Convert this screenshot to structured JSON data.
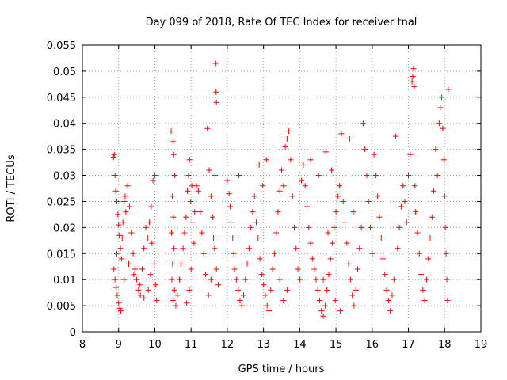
{
  "chart_data": {
    "type": "scatter",
    "title": "Day 099 of 2018, Rate Of TEC Index for receiver tnal",
    "xlabel": "GPS time / hours",
    "ylabel": "ROTI / TECUs",
    "xlim": [
      8,
      19
    ],
    "ylim": [
      0,
      0.055
    ],
    "xticks": [
      "8",
      "9",
      "10",
      "11",
      "12",
      "13",
      "14",
      "15",
      "16",
      "17",
      "18",
      "19"
    ],
    "yticks": [
      "0",
      "0.005",
      "0.01",
      "0.015",
      "0.02",
      "0.025",
      "0.03",
      "0.035",
      "0.04",
      "0.045",
      "0.05",
      "0.055"
    ],
    "grid": true,
    "marker": "plus",
    "color": "#ff0000",
    "series": [
      {
        "points": [
          [
            8.86,
            0.0335
          ],
          [
            8.88,
            0.034
          ],
          [
            8.9,
            0.03
          ],
          [
            8.92,
            0.027
          ],
          [
            8.95,
            0.025
          ],
          [
            8.98,
            0.0225
          ],
          [
            9.0,
            0.0205
          ],
          [
            9.02,
            0.0185
          ],
          [
            9.05,
            0.016
          ],
          [
            9.08,
            0.014
          ],
          [
            8.87,
            0.012
          ],
          [
            8.9,
            0.01
          ],
          [
            8.93,
            0.0085
          ],
          [
            8.96,
            0.007
          ],
          [
            9.0,
            0.0055
          ],
          [
            9.03,
            0.0045
          ],
          [
            9.06,
            0.004
          ],
          [
            8.95,
            0.015
          ],
          [
            9.1,
            0.018
          ],
          [
            9.12,
            0.021
          ],
          [
            9.15,
            0.025
          ],
          [
            9.18,
            0.026
          ],
          [
            9.2,
            0.023
          ],
          [
            9.25,
            0.028
          ],
          [
            9.3,
            0.024
          ],
          [
            9.35,
            0.019
          ],
          [
            9.4,
            0.015
          ],
          [
            9.45,
            0.012
          ],
          [
            9.5,
            0.01
          ],
          [
            9.55,
            0.008
          ],
          [
            9.6,
            0.007
          ],
          [
            9.65,
            0.012
          ],
          [
            9.7,
            0.016
          ],
          [
            9.75,
            0.02
          ],
          [
            9.8,
            0.018
          ],
          [
            9.85,
            0.021
          ],
          [
            9.9,
            0.024
          ],
          [
            9.95,
            0.029
          ],
          [
            10.0,
            0.03
          ],
          [
            9.92,
            0.017
          ],
          [
            9.98,
            0.013
          ],
          [
            10.02,
            0.009
          ],
          [
            10.05,
            0.006
          ],
          [
            9.88,
            0.011
          ],
          [
            9.82,
            0.008
          ],
          [
            9.7,
            0.0065
          ],
          [
            9.58,
            0.009
          ],
          [
            9.42,
            0.011
          ],
          [
            9.28,
            0.013
          ],
          [
            9.15,
            0.01
          ],
          [
            10.45,
            0.0385
          ],
          [
            10.5,
            0.0365
          ],
          [
            10.52,
            0.034
          ],
          [
            10.55,
            0.03
          ],
          [
            10.48,
            0.026
          ],
          [
            10.51,
            0.022
          ],
          [
            10.46,
            0.019
          ],
          [
            10.53,
            0.016
          ],
          [
            10.49,
            0.013
          ],
          [
            10.47,
            0.01
          ],
          [
            10.54,
            0.008
          ],
          [
            10.5,
            0.006
          ],
          [
            10.58,
            0.005
          ],
          [
            10.62,
            0.007
          ],
          [
            10.68,
            0.01
          ],
          [
            10.72,
            0.013
          ],
          [
            10.78,
            0.016
          ],
          [
            10.82,
            0.019
          ],
          [
            10.86,
            0.022
          ],
          [
            10.9,
            0.027
          ],
          [
            10.93,
            0.03
          ],
          [
            10.96,
            0.033
          ],
          [
            10.99,
            0.025
          ],
          [
            11.02,
            0.028
          ],
          [
            11.05,
            0.021
          ],
          [
            11.08,
            0.017
          ],
          [
            11.0,
            0.012
          ],
          [
            10.95,
            0.008
          ],
          [
            10.88,
            0.0055
          ],
          [
            11.1,
            0.023
          ],
          [
            11.15,
            0.028
          ],
          [
            11.2,
            0.027
          ],
          [
            11.25,
            0.023
          ],
          [
            11.3,
            0.019
          ],
          [
            11.35,
            0.015
          ],
          [
            11.4,
            0.011
          ],
          [
            11.45,
            0.039
          ],
          [
            11.5,
            0.031
          ],
          [
            11.55,
            0.026
          ],
          [
            11.6,
            0.022
          ],
          [
            11.65,
            0.016
          ],
          [
            11.7,
            0.012
          ],
          [
            11.75,
            0.009
          ],
          [
            11.68,
            0.0515
          ],
          [
            11.69,
            0.046
          ],
          [
            11.7,
            0.044
          ],
          [
            11.66,
            0.03
          ],
          [
            11.62,
            0.018
          ],
          [
            11.55,
            0.01
          ],
          [
            11.48,
            0.007
          ],
          [
            12.0,
            0.029
          ],
          [
            12.05,
            0.0265
          ],
          [
            12.08,
            0.024
          ],
          [
            12.1,
            0.021
          ],
          [
            12.15,
            0.018
          ],
          [
            12.18,
            0.015
          ],
          [
            12.2,
            0.012
          ],
          [
            12.25,
            0.01
          ],
          [
            12.3,
            0.008
          ],
          [
            12.35,
            0.006
          ],
          [
            12.4,
            0.005
          ],
          [
            12.45,
            0.007
          ],
          [
            12.5,
            0.01
          ],
          [
            12.55,
            0.013
          ],
          [
            12.6,
            0.016
          ],
          [
            12.65,
            0.02
          ],
          [
            12.7,
            0.023
          ],
          [
            12.75,
            0.026
          ],
          [
            12.8,
            0.021
          ],
          [
            12.85,
            0.018
          ],
          [
            12.9,
            0.014
          ],
          [
            12.95,
            0.011
          ],
          [
            13.0,
            0.009
          ],
          [
            13.05,
            0.007
          ],
          [
            13.1,
            0.005
          ],
          [
            13.15,
            0.004
          ],
          [
            13.2,
            0.008
          ],
          [
            13.25,
            0.012
          ],
          [
            13.3,
            0.015
          ],
          [
            13.35,
            0.019
          ],
          [
            13.4,
            0.023
          ],
          [
            13.45,
            0.027
          ],
          [
            13.5,
            0.031
          ],
          [
            13.55,
            0.028
          ],
          [
            13.6,
            0.0355
          ],
          [
            13.65,
            0.037
          ],
          [
            13.7,
            0.0385
          ],
          [
            13.75,
            0.033
          ],
          [
            13.8,
            0.026
          ],
          [
            13.85,
            0.02
          ],
          [
            13.9,
            0.016
          ],
          [
            13.95,
            0.012
          ],
          [
            14.0,
            0.01
          ],
          [
            13.65,
            0.008
          ],
          [
            13.55,
            0.006
          ],
          [
            13.45,
            0.01
          ],
          [
            12.98,
            0.028
          ],
          [
            12.88,
            0.032
          ],
          [
            13.08,
            0.033
          ],
          [
            12.32,
            0.03
          ],
          [
            14.05,
            0.029
          ],
          [
            14.1,
            0.032
          ],
          [
            14.15,
            0.028
          ],
          [
            14.2,
            0.024
          ],
          [
            14.25,
            0.02
          ],
          [
            14.3,
            0.017
          ],
          [
            14.35,
            0.014
          ],
          [
            14.4,
            0.012
          ],
          [
            14.45,
            0.01
          ],
          [
            14.5,
            0.008
          ],
          [
            14.55,
            0.006
          ],
          [
            14.6,
            0.004
          ],
          [
            14.65,
            0.003
          ],
          [
            14.7,
            0.005
          ],
          [
            14.75,
            0.008
          ],
          [
            14.8,
            0.011
          ],
          [
            14.85,
            0.014
          ],
          [
            14.9,
            0.017
          ],
          [
            14.95,
            0.02
          ],
          [
            15.0,
            0.023
          ],
          [
            15.05,
            0.026
          ],
          [
            15.1,
            0.028
          ],
          [
            15.15,
            0.038
          ],
          [
            15.2,
            0.025
          ],
          [
            15.25,
            0.021
          ],
          [
            15.3,
            0.017
          ],
          [
            15.35,
            0.013
          ],
          [
            15.4,
            0.01
          ],
          [
            15.45,
            0.007
          ],
          [
            15.5,
            0.005
          ],
          [
            15.55,
            0.008
          ],
          [
            15.6,
            0.012
          ],
          [
            15.65,
            0.016
          ],
          [
            15.7,
            0.02
          ],
          [
            15.75,
            0.04
          ],
          [
            15.8,
            0.035
          ],
          [
            15.85,
            0.03
          ],
          [
            15.9,
            0.025
          ],
          [
            15.95,
            0.02
          ],
          [
            16.0,
            0.015
          ],
          [
            14.3,
            0.033
          ],
          [
            14.72,
            0.0345
          ],
          [
            14.52,
            0.03
          ],
          [
            14.88,
            0.031
          ],
          [
            15.38,
            0.037
          ],
          [
            14.65,
            0.01
          ],
          [
            14.98,
            0.006
          ],
          [
            15.12,
            0.004
          ],
          [
            14.78,
            0.019
          ],
          [
            15.48,
            0.023
          ],
          [
            16.05,
            0.034
          ],
          [
            16.1,
            0.03
          ],
          [
            16.15,
            0.026
          ],
          [
            16.2,
            0.022
          ],
          [
            16.25,
            0.018
          ],
          [
            16.3,
            0.014
          ],
          [
            16.35,
            0.011
          ],
          [
            16.4,
            0.008
          ],
          [
            16.45,
            0.006
          ],
          [
            16.5,
            0.004
          ],
          [
            16.55,
            0.007
          ],
          [
            16.6,
            0.01
          ],
          [
            16.65,
            0.0375
          ],
          [
            16.7,
            0.016
          ],
          [
            16.75,
            0.02
          ],
          [
            16.8,
            0.024
          ],
          [
            16.85,
            0.028
          ],
          [
            16.9,
            0.025
          ],
          [
            16.95,
            0.021
          ],
          [
            17.0,
            0.03
          ],
          [
            17.05,
            0.034
          ],
          [
            17.1,
            0.048
          ],
          [
            17.12,
            0.049
          ],
          [
            17.14,
            0.0505
          ],
          [
            17.16,
            0.047
          ],
          [
            17.18,
            0.028
          ],
          [
            17.2,
            0.023
          ],
          [
            17.25,
            0.019
          ],
          [
            17.3,
            0.015
          ],
          [
            17.35,
            0.011
          ],
          [
            17.4,
            0.008
          ],
          [
            17.45,
            0.006
          ],
          [
            17.5,
            0.01
          ],
          [
            17.55,
            0.014
          ],
          [
            17.6,
            0.018
          ],
          [
            17.65,
            0.022
          ],
          [
            17.7,
            0.027
          ],
          [
            17.75,
            0.035
          ],
          [
            17.8,
            0.03
          ],
          [
            17.85,
            0.04
          ],
          [
            17.88,
            0.043
          ],
          [
            17.92,
            0.045
          ],
          [
            17.95,
            0.039
          ],
          [
            17.98,
            0.033
          ],
          [
            18.0,
            0.026
          ],
          [
            18.02,
            0.02
          ],
          [
            18.04,
            0.015
          ],
          [
            18.06,
            0.01
          ],
          [
            18.08,
            0.006
          ],
          [
            18.1,
            0.0465
          ]
        ]
      }
    ]
  }
}
